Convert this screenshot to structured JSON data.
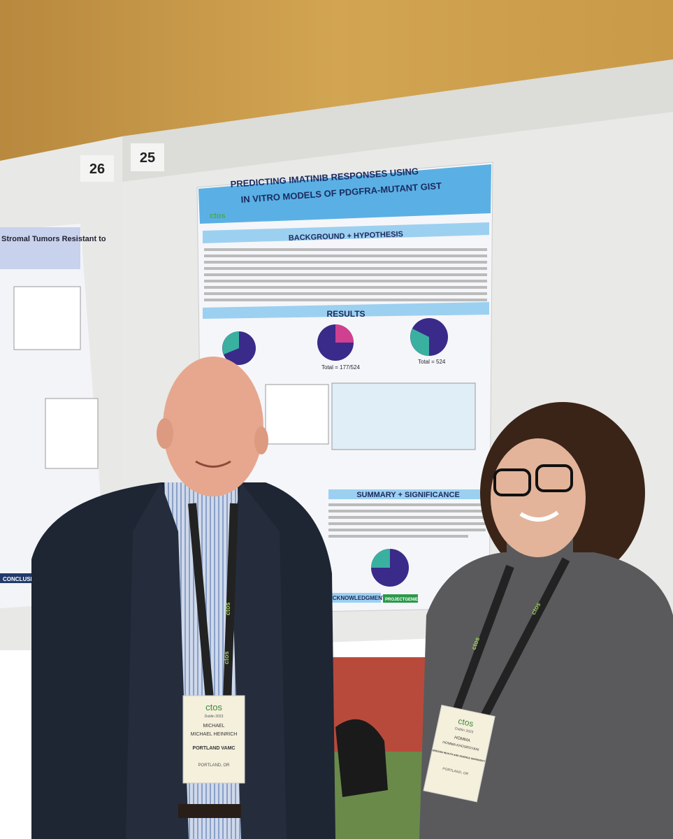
{
  "boards": [
    "26",
    "25"
  ],
  "left_poster": {
    "title": "Stromal Tumors Resistant to",
    "conclusions": "CONCLUSIONS"
  },
  "poster": {
    "logo": "ctos",
    "title_line1": "PREDICTING IMATINIB RESPONSES USING",
    "title_line2": "IN VITRO MODELS OF PDGFRA-MUTANT GIST",
    "sections": [
      "BACKGROUND + HYPOTHESIS",
      "RESULTS",
      "SUMMARY + SIGNIFICANCE",
      "ACKNOWLEDGMENTS"
    ],
    "totals": [
      "Total = 177/524",
      "Total = 524"
    ],
    "footer_logo": "PROJECTGENIE"
  },
  "lanyard": "ctos",
  "badges": [
    {
      "logo": "ctos",
      "event": "Dublin 2023",
      "first": "MICHAEL",
      "name": "MICHAEL HEINRICH",
      "org": "PORTLAND VAMC",
      "city": "PORTLAND, OR"
    },
    {
      "logo": "ctos",
      "event": "Dublin 2023",
      "first": "HOMMA",
      "name": "HOMMA KHOSROYANI",
      "org": "OREGON HEALTH AND SCIENCE UNIVERSITY",
      "city": "PORTLAND, OR"
    }
  ]
}
